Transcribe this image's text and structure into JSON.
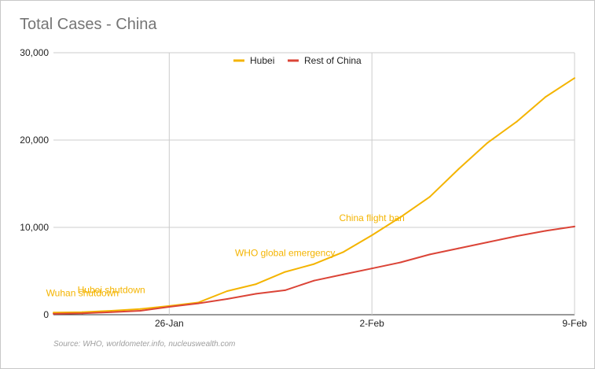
{
  "chart_data": {
    "type": "line",
    "title": "Total Cases - China",
    "source": "Source: WHO, worldometer.info, nucleuswealth.com",
    "xlabel": "",
    "ylabel": "",
    "x": [
      "22-Jan",
      "23-Jan",
      "24-Jan",
      "25-Jan",
      "26-Jan",
      "27-Jan",
      "28-Jan",
      "29-Jan",
      "30-Jan",
      "31-Jan",
      "1-Feb",
      "2-Feb",
      "3-Feb",
      "4-Feb",
      "5-Feb",
      "6-Feb",
      "7-Feb",
      "8-Feb",
      "9-Feb"
    ],
    "x_tick_labels": [
      {
        "x": "26-Jan",
        "label": "26-Jan"
      },
      {
        "x": "2-Feb",
        "label": "2-Feb"
      },
      {
        "x": "9-Feb",
        "label": "9-Feb"
      }
    ],
    "y_ticks": [
      0,
      10000,
      20000,
      30000
    ],
    "y_tick_labels": [
      "0",
      "10,000",
      "20,000",
      "30,000"
    ],
    "ylim": [
      0,
      30000
    ],
    "grid": true,
    "legend_position": "top",
    "series": [
      {
        "name": "Hubei",
        "color": "#f4b400",
        "values": [
          250,
          300,
          450,
          650,
          1000,
          1400,
          2700,
          3500,
          4900,
          5800,
          7150,
          9100,
          11200,
          13500,
          16700,
          19700,
          22100,
          24950,
          27100
        ]
      },
      {
        "name": "Rest of China",
        "color": "#db4437",
        "values": [
          100,
          150,
          300,
          450,
          900,
          1300,
          1800,
          2400,
          2800,
          3900,
          4600,
          5300,
          6000,
          6900,
          7600,
          8300,
          9000,
          9600,
          10100
        ]
      }
    ],
    "annotations": [
      {
        "text": "Wuhan shutdown",
        "x": "23-Jan",
        "y": 2100
      },
      {
        "text": "Hubei shutdown",
        "x": "24-Jan",
        "y": 2500
      },
      {
        "text": "WHO global emergency",
        "x": "30-Jan",
        "y": 6700
      },
      {
        "text": "China flight ban",
        "x": "2-Feb",
        "y": 10700
      }
    ]
  }
}
